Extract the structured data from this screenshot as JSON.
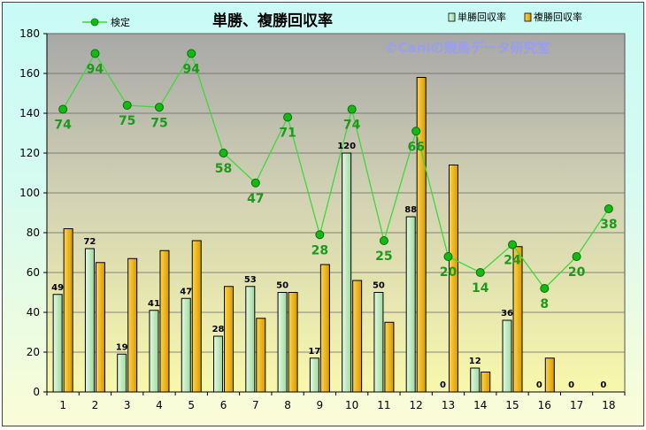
{
  "chart_data": {
    "type": "bar",
    "title": "単勝、複勝回収率",
    "watermark": "©Caniの競馬データ研究室",
    "categories": [
      "1",
      "2",
      "3",
      "4",
      "5",
      "6",
      "7",
      "8",
      "9",
      "10",
      "11",
      "12",
      "13",
      "14",
      "15",
      "16",
      "17",
      "18"
    ],
    "ylim": [
      0,
      180
    ],
    "yticks": [
      0,
      20,
      40,
      60,
      80,
      100,
      120,
      140,
      160,
      180
    ],
    "grid": true,
    "series": [
      {
        "name": "単勝回収率",
        "type": "bar",
        "color": "#bfeec0",
        "values": [
          49,
          72,
          19,
          41,
          47,
          28,
          53,
          50,
          17,
          120,
          50,
          88,
          0,
          12,
          36,
          0,
          0,
          0
        ]
      },
      {
        "name": "複勝回収率",
        "type": "bar",
        "color": "#f1b700",
        "values": [
          82,
          65,
          67,
          71,
          76,
          53,
          37,
          50,
          64,
          56,
          35,
          158,
          114,
          10,
          73,
          17,
          0,
          0
        ]
      },
      {
        "name": "検定",
        "type": "line",
        "color": "#3ed83e",
        "marker_color": "#11bb11",
        "label_color": "#1b9a1b",
        "values": [
          142,
          170,
          144,
          143,
          170,
          120,
          105,
          138,
          79,
          142,
          76,
          131,
          68,
          60,
          74,
          52,
          68,
          92
        ],
        "labels": [
          74,
          94,
          75,
          75,
          94,
          58,
          47,
          71,
          28,
          74,
          25,
          66,
          20,
          14,
          24,
          8,
          20,
          38
        ]
      }
    ],
    "legend": {
      "line_entry": "検定",
      "bar_entries": [
        "単勝回収率",
        "複勝回収率"
      ]
    }
  }
}
